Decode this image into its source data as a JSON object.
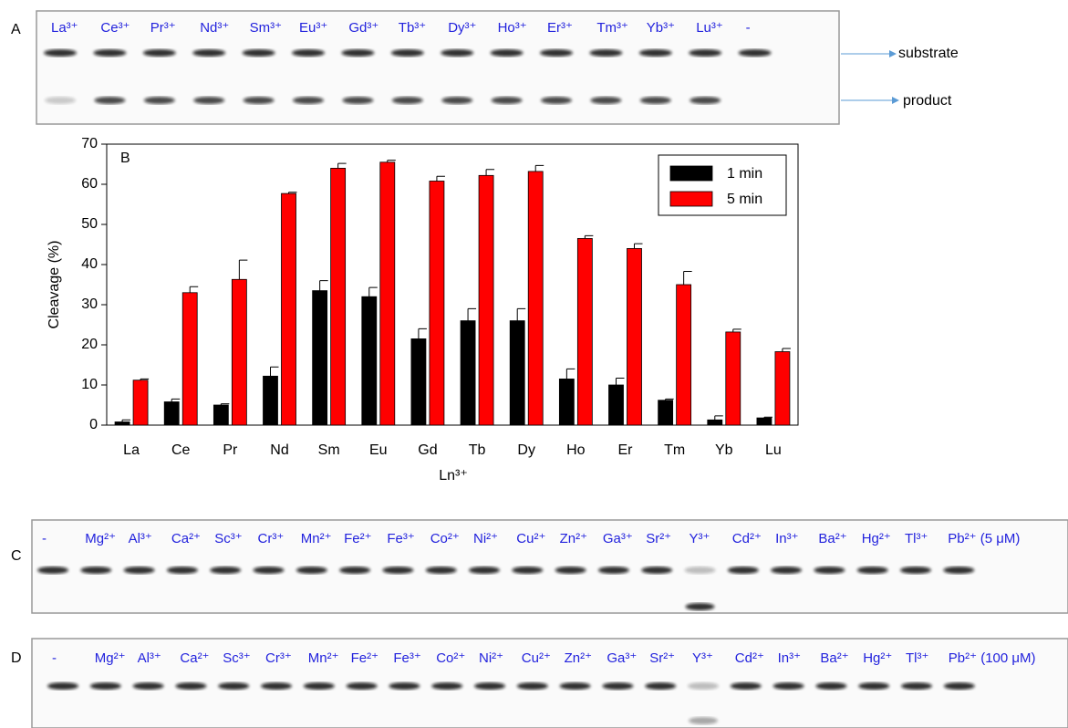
{
  "panel_a": {
    "label": "A",
    "lanes": [
      "La³⁺",
      "Ce³⁺",
      "Pr³⁺",
      "Nd³⁺",
      "Sm³⁺",
      "Eu³⁺",
      "Gd³⁺",
      "Tb³⁺",
      "Dy³⁺",
      "Ho³⁺",
      "Er³⁺",
      "Tm³⁺",
      "Yb³⁺",
      "Lu³⁺",
      "-"
    ],
    "substrate": "substrate",
    "product": "product"
  },
  "chart_data": {
    "type": "bar",
    "panel_label": "B",
    "x_label": "Ln³⁺",
    "y_label": "Cleavage (%)",
    "categories": [
      "La",
      "Ce",
      "Pr",
      "Nd",
      "Sm",
      "Eu",
      "Gd",
      "Tb",
      "Dy",
      "Ho",
      "Er",
      "Tm",
      "Yb",
      "Lu"
    ],
    "series": [
      {
        "name": "1 min",
        "color": "#000000",
        "values": [
          0.8,
          5.8,
          5.0,
          12.2,
          33.5,
          32.0,
          21.5,
          26.0,
          26.0,
          11.5,
          10.0,
          6.2,
          1.3,
          1.8
        ],
        "errors": [
          0.5,
          0.7,
          0.3,
          2.3,
          2.5,
          2.3,
          2.5,
          3.0,
          3.0,
          2.5,
          1.7,
          0.3,
          1.0,
          0.2
        ]
      },
      {
        "name": "5 min",
        "color": "#ff0000",
        "values": [
          11.2,
          33.0,
          36.3,
          57.7,
          64.0,
          65.5,
          60.8,
          62.2,
          63.2,
          46.5,
          44.0,
          35.0,
          23.2,
          18.3
        ],
        "errors": [
          0.3,
          1.5,
          4.8,
          0.3,
          1.2,
          0.5,
          1.2,
          1.5,
          1.5,
          0.7,
          1.2,
          3.3,
          0.7,
          0.8
        ]
      }
    ],
    "ylim": [
      0,
      70
    ],
    "yticks": [
      0,
      10,
      20,
      30,
      40,
      50,
      60,
      70
    ],
    "legend": "top-right"
  },
  "panel_c": {
    "label": "C",
    "lanes": [
      "-",
      "Mg²⁺",
      "Al³⁺",
      "Ca²⁺",
      "Sc³⁺",
      "Cr³⁺",
      "Mn²⁺",
      "Fe²⁺",
      "Fe³⁺",
      "Co²⁺",
      "Ni²⁺",
      "Cu²⁺",
      "Zn²⁺",
      "Ga³⁺",
      "Sr²⁺",
      "Y³⁺",
      "Cd²⁺",
      "In³⁺",
      "Ba²⁺",
      "Hg²⁺",
      "Tl³⁺",
      "Pb²⁺ (5 μM)"
    ]
  },
  "panel_d": {
    "label": "D",
    "lanes": [
      "-",
      "Mg²⁺",
      "Al³⁺",
      "Ca²⁺",
      "Sc³⁺",
      "Cr³⁺",
      "Mn²⁺",
      "Fe²⁺",
      "Fe³⁺",
      "Co²⁺",
      "Ni²⁺",
      "Cu²⁺",
      "Zn²⁺",
      "Ga³⁺",
      "Sr²⁺",
      "Y³⁺",
      "Cd²⁺",
      "In³⁺",
      "Ba²⁺",
      "Hg²⁺",
      "Tl³⁺",
      "Pb²⁺ (100 μM)"
    ]
  }
}
